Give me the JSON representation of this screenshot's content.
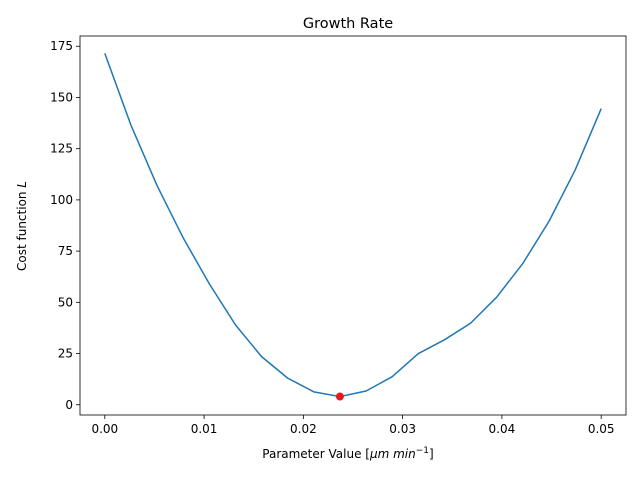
{
  "chart_data": {
    "type": "line",
    "title": "Growth Rate",
    "xlabel_text": "Parameter Value [",
    "xlabel_math": "μm min",
    "xlabel_sup": "−1",
    "xlabel_end": "]",
    "ylabel_text": "Cost function ",
    "ylabel_math": "L",
    "xlim": [
      -0.0025,
      0.0525
    ],
    "ylim": [
      -5,
      180
    ],
    "xticks": [
      0.0,
      0.01,
      0.02,
      0.03,
      0.04,
      0.05
    ],
    "xtick_labels": [
      "0.00",
      "0.01",
      "0.02",
      "0.03",
      "0.04",
      "0.05"
    ],
    "yticks": [
      0,
      25,
      50,
      75,
      100,
      125,
      150,
      175
    ],
    "ytick_labels": [
      "0",
      "25",
      "50",
      "75",
      "100",
      "125",
      "150",
      "175"
    ],
    "grid": false,
    "series": [
      {
        "color": "#1f77b4",
        "x": [
          0.0,
          0.00263,
          0.00526,
          0.00789,
          0.01053,
          0.01316,
          0.01579,
          0.01842,
          0.02105,
          0.02368,
          0.02632,
          0.02895,
          0.03158,
          0.03421,
          0.03684,
          0.03947,
          0.04211,
          0.04474,
          0.04737,
          0.05
        ],
        "y": [
          171.5,
          136.5,
          107.0,
          81.5,
          59.0,
          39.0,
          23.5,
          13.0,
          6.3,
          4.0,
          6.7,
          13.7,
          25.0,
          31.7,
          39.8,
          52.5,
          69.0,
          89.5,
          114.5,
          144.5
        ]
      }
    ],
    "highlight_point": {
      "x": 0.02368,
      "y": 4.0,
      "color": "#e41a1c"
    }
  }
}
